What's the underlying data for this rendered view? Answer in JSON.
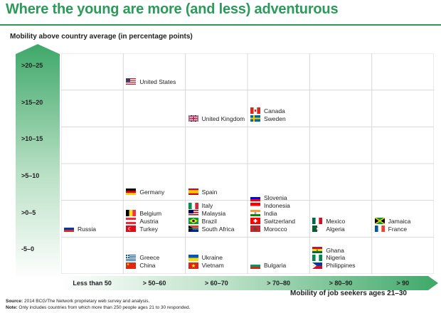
{
  "page": {
    "title": "Where the young are more (and less) adventurous",
    "xtitle": "Mobility of job seekers ages 21–30",
    "source_label": "Source:",
    "source_text": " 2014 BCG/The Network proprietary web survey and analysis.",
    "note_label": "Note:",
    "note_text": " Only includes countries from which more than 250 people ages 21 to 30 responded."
  },
  "chart_data": {
    "type": "scatter",
    "ylabel": "Mobility above country average (in percentage points)",
    "xlabel": "Mobility of job seekers ages 21–30",
    "x_categories": [
      "Less than 50",
      "> 50–60",
      "> 60–70",
      "> 70–80",
      "> 80–90",
      "> 90"
    ],
    "y_categories": [
      "-5–0",
      ">0–5",
      ">5–10",
      ">10–15",
      ">15–20",
      ">20–25"
    ],
    "countries": [
      {
        "name": "United States",
        "x": "> 50–60",
        "y": ">20–25",
        "flag": "us"
      },
      {
        "name": "United Kingdom",
        "x": "> 60–70",
        "y": ">15–20",
        "flag": "uk"
      },
      {
        "name": "Canada",
        "x": "> 70–80",
        "y": ">15–20",
        "flag": "ca"
      },
      {
        "name": "Sweden",
        "x": "> 70–80",
        "y": ">15–20",
        "flag": "se"
      },
      {
        "name": "Germany",
        "x": "> 50–60",
        "y": ">5–10",
        "flag": "de"
      },
      {
        "name": "Spain",
        "x": "> 60–70",
        "y": ">5–10",
        "flag": "es"
      },
      {
        "name": "Russia",
        "x": "Less than 50",
        "y": ">0–5",
        "flag": "ru"
      },
      {
        "name": "Belgium",
        "x": "> 50–60",
        "y": ">0–5",
        "flag": "be"
      },
      {
        "name": "Austria",
        "x": "> 50–60",
        "y": ">0–5",
        "flag": "at"
      },
      {
        "name": "Turkey",
        "x": "> 50–60",
        "y": ">0–5",
        "flag": "tr"
      },
      {
        "name": "Italy",
        "x": "> 60–70",
        "y": ">0–5",
        "flag": "it"
      },
      {
        "name": "Malaysia",
        "x": "> 60–70",
        "y": ">0–5",
        "flag": "my"
      },
      {
        "name": "Brazil",
        "x": "> 60–70",
        "y": ">0–5",
        "flag": "br"
      },
      {
        "name": "South Africa",
        "x": "> 60–70",
        "y": ">0–5",
        "flag": "za"
      },
      {
        "name": "Slovenia",
        "x": "> 70–80",
        "y": ">0–5",
        "flag": "si"
      },
      {
        "name": "Indonesia",
        "x": "> 70–80",
        "y": ">0–5",
        "flag": "id"
      },
      {
        "name": "India",
        "x": "> 70–80",
        "y": ">0–5",
        "flag": "in"
      },
      {
        "name": "Switzerland",
        "x": "> 70–80",
        "y": ">0–5",
        "flag": "ch"
      },
      {
        "name": "Morocco",
        "x": "> 70–80",
        "y": ">0–5",
        "flag": "ma"
      },
      {
        "name": "Mexico",
        "x": "> 80–90",
        "y": ">0–5",
        "flag": "mx"
      },
      {
        "name": "Algeria",
        "x": "> 80–90",
        "y": ">0–5",
        "flag": "dz"
      },
      {
        "name": "Jamaica",
        "x": "> 90",
        "y": ">0–5",
        "flag": "jm"
      },
      {
        "name": "France",
        "x": "> 90",
        "y": ">0–5",
        "flag": "fr"
      },
      {
        "name": "Greece",
        "x": "> 50–60",
        "y": "-5–0",
        "flag": "gr"
      },
      {
        "name": "China",
        "x": "> 50–60",
        "y": "-5–0",
        "flag": "cn"
      },
      {
        "name": "Ukraine",
        "x": "> 60–70",
        "y": "-5–0",
        "flag": "ua"
      },
      {
        "name": "Vietnam",
        "x": "> 60–70",
        "y": "-5–0",
        "flag": "vn"
      },
      {
        "name": "Bulgaria",
        "x": "> 70–80",
        "y": "-5–0",
        "flag": "bg"
      },
      {
        "name": "Ghana",
        "x": "> 80–90",
        "y": "-5–0",
        "flag": "gh"
      },
      {
        "name": "Nigeria",
        "x": "> 80–90",
        "y": "-5–0",
        "flag": "ng"
      },
      {
        "name": "Philippines",
        "x": "> 80–90",
        "y": "-5–0",
        "flag": "ph"
      }
    ],
    "grid": true
  }
}
